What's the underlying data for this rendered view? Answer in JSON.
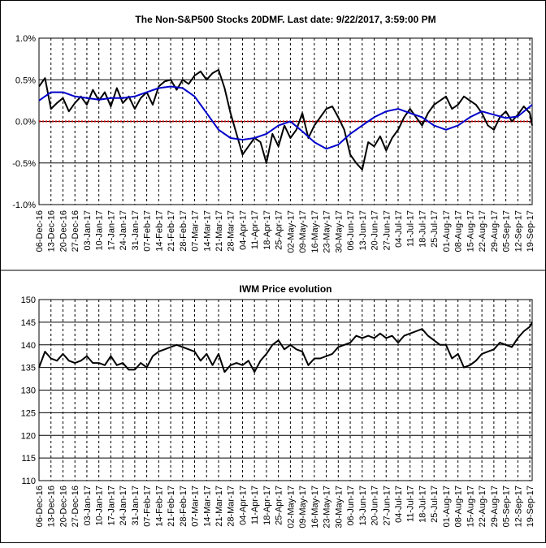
{
  "chart_data": [
    {
      "type": "line",
      "title": "The Non-S&P500 Stocks 20DMF.  Last date: 9/22/2017, 3:59:00 PM",
      "ylim": [
        -0.01,
        0.01
      ],
      "yticks": [
        0.01,
        0.005,
        0.0,
        -0.005,
        -0.01
      ],
      "ytick_labels": [
        "1.0%",
        "0.5%",
        "0.0%",
        "-0.5%",
        "-1.0%"
      ],
      "xtick_labels": [
        "06-Dec-16",
        "13-Dec-16",
        "20-Dec-16",
        "27-Dec-16",
        "03-Jan-17",
        "10-Jan-17",
        "17-Jan-17",
        "24-Jan-17",
        "31-Jan-17",
        "07-Feb-17",
        "14-Feb-17",
        "21-Feb-17",
        "28-Feb-17",
        "07-Mar-17",
        "14-Mar-17",
        "21-Mar-17",
        "28-Mar-17",
        "04-Apr-17",
        "11-Apr-17",
        "18-Apr-17",
        "25-Apr-17",
        "02-May-17",
        "09-May-17",
        "16-May-17",
        "23-May-17",
        "30-May-17",
        "06-Jun-17",
        "13-Jun-17",
        "20-Jun-17",
        "27-Jun-17",
        "04-Jul-17",
        "11-Jul-17",
        "18-Jul-17",
        "25-Jul-17",
        "01-Aug-17",
        "08-Aug-17",
        "15-Aug-17",
        "22-Aug-17",
        "29-Aug-17",
        "05-Sep-17",
        "12-Sep-17",
        "19-Sep-17"
      ],
      "grid": "vertical dashed at week ticks, solid horizontal",
      "reference_line": {
        "y": 0.0,
        "color": "#cc0000",
        "style": "dotted"
      },
      "series": [
        {
          "color": "#000000",
          "x": [
            0,
            0.5,
            1,
            1.5,
            2,
            2.5,
            3,
            3.5,
            4,
            4.5,
            5,
            5.5,
            6,
            6.5,
            7,
            7.5,
            8,
            8.5,
            9,
            9.5,
            10,
            10.5,
            11,
            11.5,
            12,
            12.5,
            13,
            13.5,
            14,
            14.5,
            15,
            15.5,
            16,
            16.5,
            17,
            17.5,
            18,
            18.5,
            19,
            19.5,
            20,
            20.5,
            21,
            21.5,
            22,
            22.5,
            23,
            23.5,
            24,
            24.5,
            25,
            25.5,
            26,
            26.5,
            27,
            27.5,
            28,
            28.5,
            29,
            29.5,
            30,
            30.5,
            31,
            31.5,
            32,
            32.5,
            33,
            33.5,
            34,
            34.5,
            35,
            35.5,
            36,
            36.5,
            37,
            37.5,
            38,
            38.5,
            39,
            39.5,
            40,
            40.5,
            41,
            41.2
          ],
          "y": [
            0.0042,
            0.0052,
            0.0015,
            0.0022,
            0.0028,
            0.0012,
            0.0022,
            0.003,
            0.002,
            0.0038,
            0.0025,
            0.0035,
            0.0018,
            0.004,
            0.0022,
            0.003,
            0.0015,
            0.0028,
            0.0035,
            0.002,
            0.0042,
            0.0048,
            0.005,
            0.0038,
            0.005,
            0.0045,
            0.0055,
            0.006,
            0.005,
            0.0058,
            0.0062,
            0.004,
            0.001,
            -0.0015,
            -0.004,
            -0.003,
            -0.002,
            -0.0025,
            -0.005,
            -0.0015,
            -0.003,
            -0.0005,
            -0.002,
            -0.001,
            0.001,
            -0.002,
            -0.0005,
            0.0005,
            0.0015,
            0.0018,
            0.0005,
            -0.001,
            -0.004,
            -0.005,
            -0.0058,
            -0.0025,
            -0.003,
            -0.0018,
            -0.0035,
            -0.002,
            -0.001,
            0.0005,
            0.0015,
            0.0005,
            -0.0005,
            0.001,
            0.002,
            0.0025,
            0.003,
            0.0015,
            0.002,
            0.003,
            0.0025,
            0.002,
            0.001,
            -0.0005,
            -0.001,
            0.0005,
            0.0012,
            0.0,
            0.0008,
            0.0018,
            0.001,
            -0.0005
          ]
        },
        {
          "color": "#0000cc",
          "x": [
            0,
            1,
            2,
            3,
            4,
            5,
            6,
            7,
            8,
            9,
            10,
            11,
            12,
            13,
            14,
            15,
            16,
            17,
            18,
            19,
            20,
            21,
            22,
            23,
            24,
            25,
            26,
            27,
            28,
            29,
            30,
            31,
            32,
            33,
            34,
            35,
            36,
            37,
            38,
            39,
            40,
            41.2
          ],
          "y": [
            0.0025,
            0.0035,
            0.0035,
            0.003,
            0.0028,
            0.0026,
            0.0028,
            0.0028,
            0.003,
            0.0035,
            0.004,
            0.0042,
            0.004,
            0.003,
            0.001,
            -0.001,
            -0.002,
            -0.0022,
            -0.002,
            -0.0015,
            -0.0005,
            0.0,
            -0.0012,
            -0.0025,
            -0.0033,
            -0.0028,
            -0.0015,
            -0.0005,
            0.0005,
            0.0012,
            0.0015,
            0.001,
            0.0005,
            -0.0005,
            -0.001,
            -0.0005,
            0.0005,
            0.0012,
            0.0008,
            0.0004,
            0.0006,
            0.002
          ]
        }
      ]
    },
    {
      "type": "line",
      "title": "IWM Price evolution",
      "ylim": [
        110,
        150
      ],
      "yticks": [
        150,
        145,
        140,
        135,
        130,
        125,
        120,
        115,
        110
      ],
      "ytick_labels": [
        "150",
        "145",
        "140",
        "135",
        "130",
        "125",
        "120",
        "115",
        "110"
      ],
      "xtick_labels": [
        "06-Dec-16",
        "13-Dec-16",
        "20-Dec-16",
        "27-Dec-16",
        "03-Jan-17",
        "10-Jan-17",
        "17-Jan-17",
        "24-Jan-17",
        "31-Jan-17",
        "07-Feb-17",
        "14-Feb-17",
        "21-Feb-17",
        "28-Feb-17",
        "07-Mar-17",
        "14-Mar-17",
        "21-Mar-17",
        "28-Mar-17",
        "04-Apr-17",
        "11-Apr-17",
        "18-Apr-17",
        "25-Apr-17",
        "02-May-17",
        "09-May-17",
        "16-May-17",
        "23-May-17",
        "30-May-17",
        "06-Jun-17",
        "13-Jun-17",
        "20-Jun-17",
        "27-Jun-17",
        "04-Jul-17",
        "11-Jul-17",
        "18-Jul-17",
        "25-Jul-17",
        "01-Aug-17",
        "08-Aug-17",
        "15-Aug-17",
        "22-Aug-17",
        "29-Aug-17",
        "05-Sep-17",
        "12-Sep-17",
        "19-Sep-17"
      ],
      "grid": "vertical dashed at week ticks, solid horizontal",
      "series": [
        {
          "color": "#000000",
          "x": [
            0,
            0.5,
            1,
            1.5,
            2,
            2.5,
            3,
            3.5,
            4,
            4.5,
            5,
            5.5,
            6,
            6.5,
            7,
            7.5,
            8,
            8.5,
            9,
            9.5,
            10,
            10.5,
            11,
            11.5,
            12,
            12.5,
            13,
            13.5,
            14,
            14.5,
            15,
            15.5,
            16,
            16.5,
            17,
            17.5,
            18,
            18.5,
            19,
            19.5,
            20,
            20.5,
            21,
            21.5,
            22,
            22.5,
            23,
            23.5,
            24,
            24.5,
            25,
            25.5,
            26,
            26.5,
            27,
            27.5,
            28,
            28.5,
            29,
            29.5,
            30,
            30.5,
            31,
            31.5,
            32,
            32.5,
            33,
            33.5,
            34,
            34.5,
            35,
            35.5,
            36,
            36.5,
            37,
            37.5,
            38,
            38.5,
            39,
            39.5,
            40,
            40.5,
            41,
            41.2
          ],
          "y": [
            135.0,
            138.5,
            137.0,
            136.5,
            138.0,
            136.5,
            136.0,
            136.5,
            137.5,
            136.0,
            136.0,
            135.5,
            137.5,
            135.5,
            136.0,
            134.5,
            134.5,
            136.0,
            135.0,
            137.5,
            138.5,
            139.0,
            139.5,
            140.0,
            139.5,
            139.0,
            138.5,
            136.5,
            138.0,
            135.5,
            138.0,
            134.0,
            135.5,
            136.0,
            135.5,
            136.5,
            134.0,
            136.5,
            138.0,
            140.0,
            141.0,
            139.0,
            140.0,
            139.0,
            138.5,
            135.5,
            137.0,
            137.0,
            137.5,
            138.0,
            139.5,
            140.0,
            140.5,
            142.0,
            141.5,
            142.0,
            141.5,
            142.5,
            141.5,
            142.0,
            140.5,
            142.0,
            142.5,
            143.0,
            143.5,
            142.0,
            141.0,
            140.0,
            140.0,
            137.0,
            138.0,
            135.0,
            135.5,
            136.5,
            138.0,
            138.5,
            139.0,
            140.5,
            140.0,
            139.5,
            141.5,
            143.0,
            144.0,
            145.0
          ]
        }
      ]
    }
  ]
}
